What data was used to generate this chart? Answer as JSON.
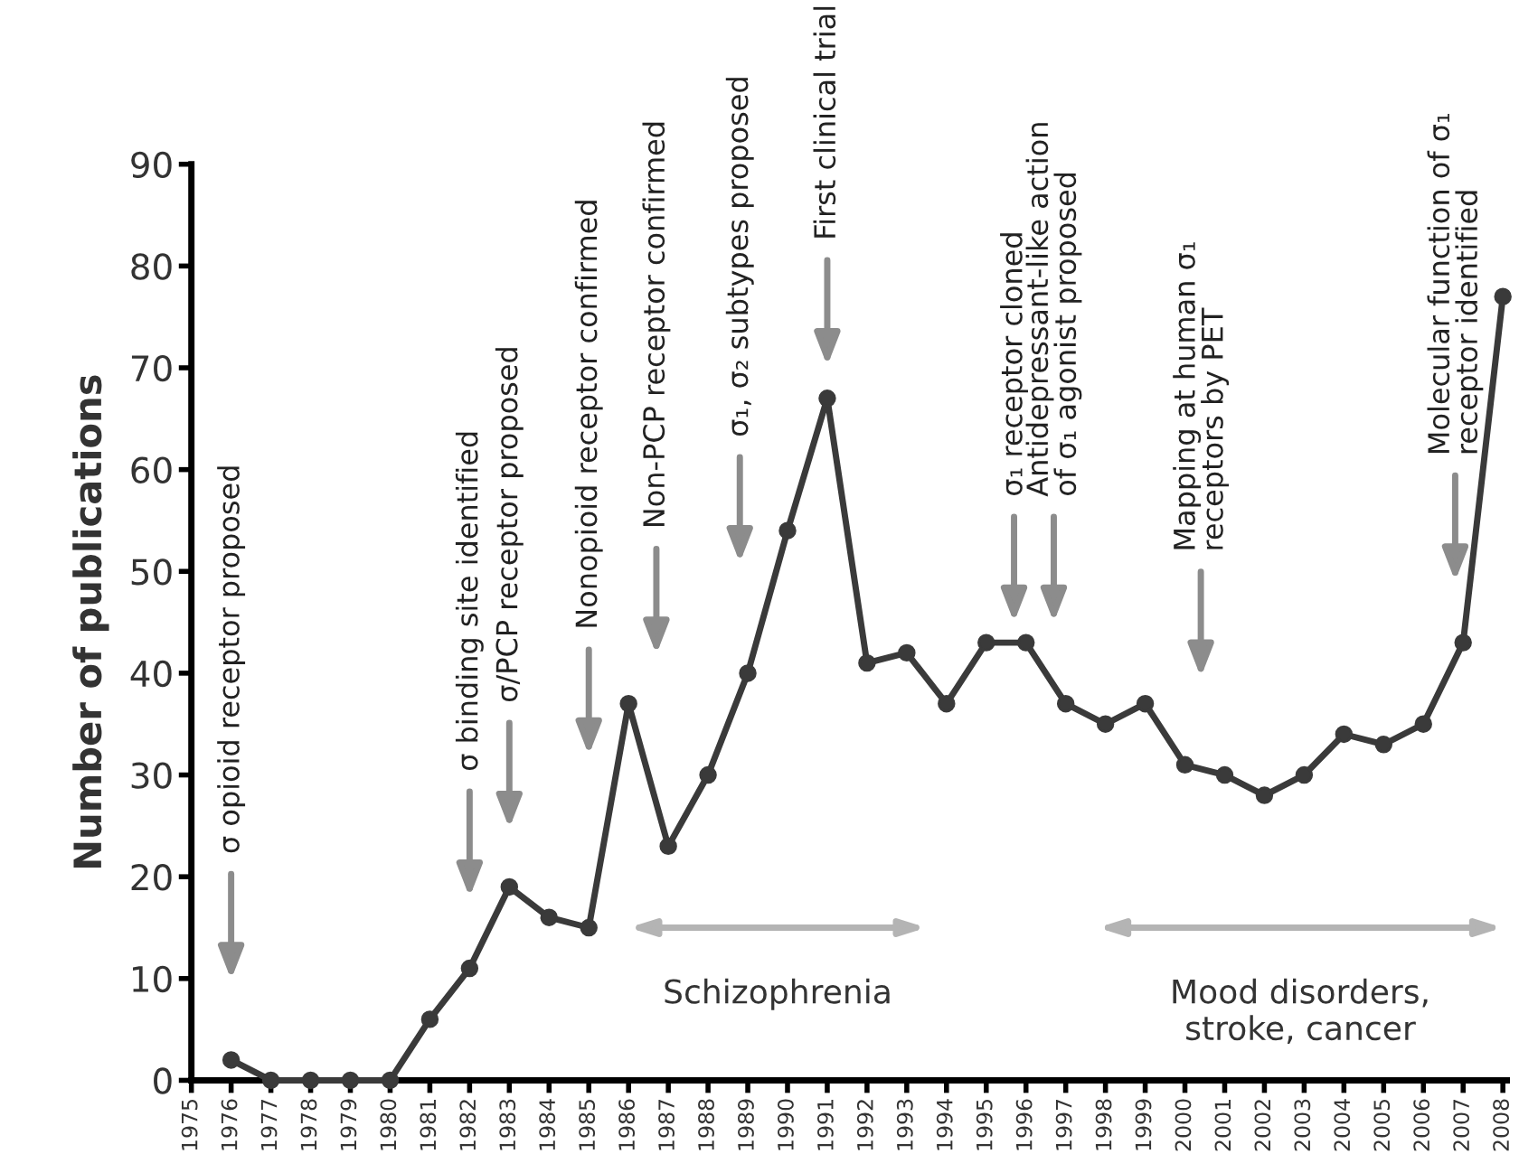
{
  "chart_data": {
    "type": "line",
    "ylabel": "Number of publications",
    "x": [
      1976,
      1977,
      1978,
      1979,
      1980,
      1981,
      1982,
      1983,
      1984,
      1985,
      1986,
      1987,
      1988,
      1989,
      1990,
      1991,
      1992,
      1993,
      1994,
      1995,
      1996,
      1997,
      1998,
      1999,
      2000,
      2001,
      2002,
      2003,
      2004,
      2005,
      2006,
      2007,
      2008
    ],
    "series": [
      {
        "color": "#3a3a3a",
        "values": [
          2,
          0,
          0,
          0,
          0,
          6,
          11,
          19,
          16,
          15,
          37,
          23,
          30,
          40,
          54,
          67,
          41,
          42,
          37,
          43,
          43,
          37,
          35,
          37,
          31,
          30,
          28,
          30,
          34,
          33,
          35,
          43,
          77
        ]
      }
    ],
    "xlim": [
      1975,
      2008.1
    ],
    "xticks": [
      1975,
      1976,
      1977,
      1978,
      1979,
      1980,
      1981,
      1982,
      1983,
      1984,
      1985,
      1986,
      1987,
      1988,
      1989,
      1990,
      1991,
      1992,
      1993,
      1994,
      1995,
      1996,
      1997,
      1998,
      1999,
      2000,
      2001,
      2002,
      2003,
      2004,
      2005,
      2006,
      2007,
      2008
    ],
    "ylim": [
      0,
      90
    ],
    "yticks": [
      0,
      10,
      20,
      30,
      40,
      50,
      60,
      70,
      80,
      90
    ],
    "grid": false,
    "legend": false,
    "marker": "circle",
    "line_style": "solid",
    "annotations": [
      "σ opioid receptor proposed",
      "σ binding site identified",
      "σ/PCP receptor proposed",
      "Nonopioid receptor confirmed",
      "Non-PCP receptor confirmed",
      "σ₁, σ₂ subtypes proposed",
      "First clinical trial",
      "σ₁ receptor cloned",
      "Antidepressant-like action\nof σ₁ agonist proposed",
      "Mapping at human σ₁\nreceptors by PET",
      "Molecular function of σ₁\nreceptor identified",
      "Schizophrenia",
      "Mood disorders,\nstroke, cancer"
    ]
  }
}
